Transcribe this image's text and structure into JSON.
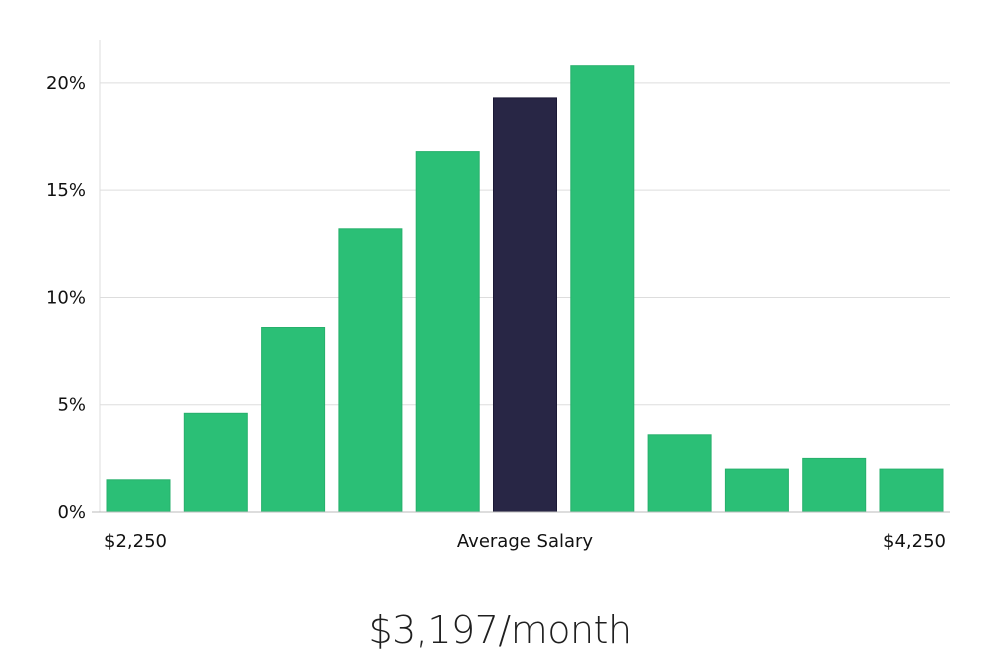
{
  "chart_data": {
    "type": "bar",
    "title": "",
    "xlabel": "",
    "ylabel": "",
    "ylim": [
      0,
      22
    ],
    "yticks": [
      0,
      5,
      10,
      15,
      20
    ],
    "ytick_labels": [
      "0%",
      "5%",
      "10%",
      "15%",
      "20%"
    ],
    "grid": true,
    "x_labels": {
      "left": "$2,250",
      "center": "Average Salary",
      "right": "$4,250"
    },
    "values": [
      1.5,
      4.6,
      8.6,
      13.2,
      16.8,
      19.3,
      20.8,
      3.6,
      2.0,
      2.5,
      2.0
    ],
    "highlight_index": 5,
    "colors": {
      "bar": "#2bbf76",
      "highlight": "#282645",
      "grid": "#dddddd",
      "axis": "#bbbbbb"
    }
  },
  "caption": "$3,197/month"
}
